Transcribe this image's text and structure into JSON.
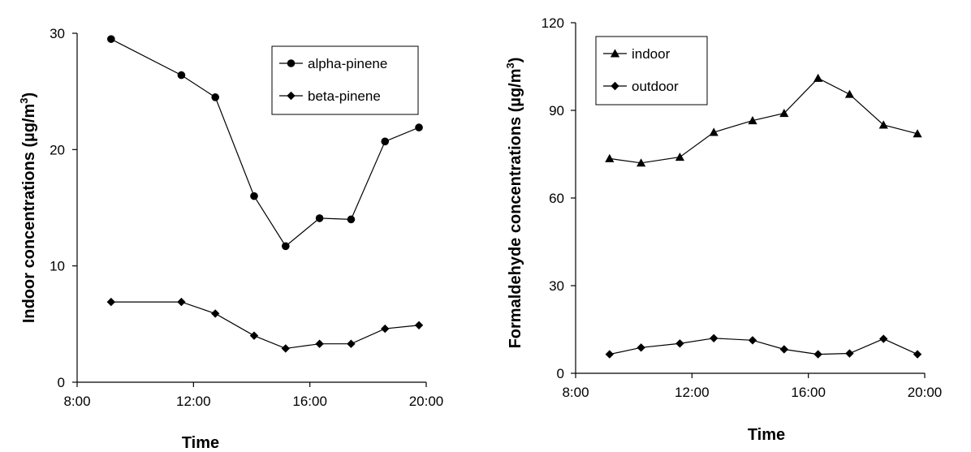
{
  "chart_data": [
    {
      "type": "line",
      "title": "",
      "xlabel": "Time",
      "ylabel": "Indoor concentrations  (µg/m",
      "ylabel_sup": "3",
      "ylabel_end": ")",
      "xlim": [
        "8:00",
        "20:00"
      ],
      "ylim": [
        0,
        30
      ],
      "x_ticks": [
        "8:00",
        "12:00",
        "16:00",
        "20:00"
      ],
      "y_ticks": [
        "0",
        "10",
        "20",
        "30"
      ],
      "grid": false,
      "legend_position": "top-right",
      "series": [
        {
          "name": "alpha-pinene",
          "marker": "circle",
          "x": [
            "9:10",
            "11:35",
            "12:45",
            "14:05",
            "15:10",
            "16:20",
            "17:25",
            "18:35",
            "19:45"
          ],
          "y": [
            29.5,
            26.4,
            24.5,
            16.0,
            11.7,
            14.1,
            14.0,
            20.7,
            21.9
          ]
        },
        {
          "name": "beta-pinene",
          "marker": "diamond",
          "x": [
            "9:10",
            "11:35",
            "12:45",
            "14:05",
            "15:10",
            "16:20",
            "17:25",
            "18:35",
            "19:45"
          ],
          "y": [
            6.9,
            6.9,
            5.9,
            4.0,
            2.9,
            3.3,
            3.3,
            4.6,
            4.9
          ]
        }
      ]
    },
    {
      "type": "line",
      "title": "",
      "xlabel": "Time",
      "ylabel": "Formaldehyde concentrations  (µg/m",
      "ylabel_sup": "3",
      "ylabel_end": ")",
      "xlim": [
        "8:00",
        "20:00"
      ],
      "ylim": [
        0,
        120
      ],
      "x_ticks": [
        "8:00",
        "12:00",
        "16:00",
        "20:00"
      ],
      "y_ticks": [
        "0",
        "30",
        "60",
        "90",
        "120"
      ],
      "grid": false,
      "legend_position": "top-left",
      "series": [
        {
          "name": "indoor",
          "marker": "triangle",
          "x": [
            "9:10",
            "10:15",
            "11:35",
            "12:45",
            "14:05",
            "15:10",
            "16:20",
            "17:25",
            "18:35",
            "19:45"
          ],
          "y": [
            73.5,
            72.0,
            74.0,
            82.5,
            86.5,
            89.0,
            101.0,
            95.5,
            85.0,
            82.0
          ]
        },
        {
          "name": "outdoor",
          "marker": "diamond",
          "x": [
            "9:10",
            "10:15",
            "11:35",
            "12:45",
            "14:05",
            "15:10",
            "16:20",
            "17:25",
            "18:35",
            "19:45"
          ],
          "y": [
            6.5,
            8.8,
            10.2,
            12.0,
            11.3,
            8.2,
            6.5,
            6.8,
            11.8,
            6.5
          ]
        }
      ]
    }
  ]
}
